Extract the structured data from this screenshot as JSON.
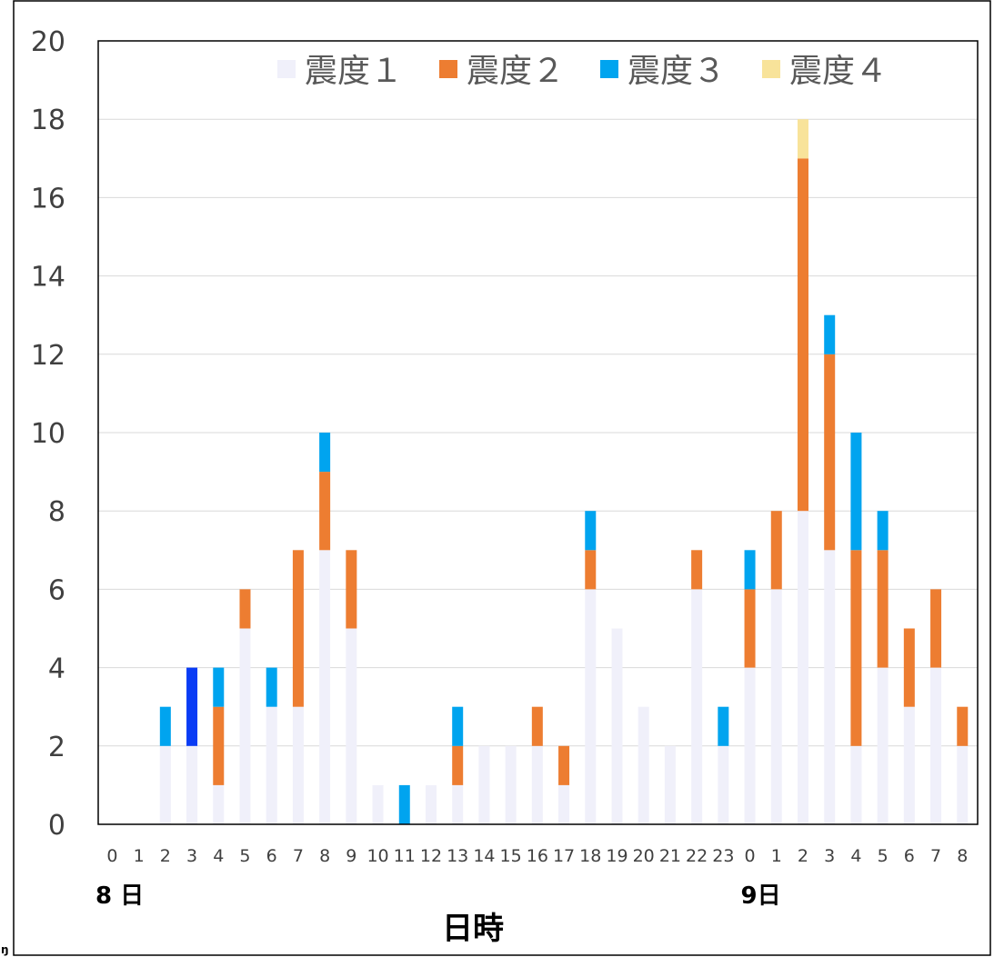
{
  "chart_data": {
    "type": "bar",
    "stacked": true,
    "categories": [
      "0",
      "1",
      "2",
      "3",
      "4",
      "5",
      "6",
      "7",
      "8",
      "9",
      "10",
      "11",
      "12",
      "13",
      "14",
      "15",
      "16",
      "17",
      "18",
      "19",
      "20",
      "21",
      "22",
      "23",
      "0",
      "1",
      "2",
      "3",
      "4",
      "5",
      "6",
      "7",
      "8"
    ],
    "series": [
      {
        "name": "震度１",
        "color": "#f0f0fa",
        "values": [
          0,
          0,
          2,
          2,
          1,
          5,
          3,
          3,
          7,
          5,
          1,
          0,
          1,
          1,
          2,
          2,
          2,
          1,
          6,
          5,
          3,
          2,
          6,
          2,
          4,
          6,
          8,
          7,
          2,
          4,
          3,
          4,
          2
        ]
      },
      {
        "name": "震度２",
        "color": "#ed7d31",
        "values": [
          0,
          0,
          0,
          0,
          2,
          1,
          0,
          4,
          2,
          2,
          0,
          0,
          0,
          1,
          0,
          0,
          1,
          1,
          1,
          0,
          0,
          0,
          1,
          0,
          2,
          2,
          9,
          5,
          5,
          3,
          2,
          2,
          1
        ]
      },
      {
        "name": "震度３",
        "color": "#00a4ef",
        "values": [
          0,
          0,
          1,
          2,
          1,
          0,
          1,
          0,
          1,
          0,
          0,
          1,
          0,
          1,
          0,
          0,
          0,
          0,
          1,
          0,
          0,
          0,
          0,
          1,
          1,
          0,
          0,
          1,
          3,
          1,
          0,
          0,
          0
        ]
      },
      {
        "name": "震度４",
        "color": "#f8e39a",
        "values": [
          0,
          0,
          0,
          0,
          0,
          0,
          0,
          0,
          0,
          0,
          0,
          0,
          0,
          0,
          0,
          0,
          0,
          0,
          0,
          0,
          0,
          0,
          0,
          0,
          0,
          0,
          1,
          0,
          0,
          0,
          0,
          0,
          0
        ]
      }
    ],
    "highlight": {
      "category_index": 3,
      "series_index": 2,
      "color": "#0a3cf5"
    },
    "ylim": [
      0,
      20
    ],
    "yticks": [
      "0",
      "2",
      "4",
      "6",
      "8",
      "10",
      "12",
      "14",
      "16",
      "18",
      "20"
    ],
    "grid": true,
    "legend_position": "top",
    "day_labels": [
      {
        "text": "8 日",
        "at_index": 0
      },
      {
        "text": "9日",
        "at_index": 24
      }
    ],
    "xlabel": "日時",
    "ylabel": "",
    "title": ""
  },
  "corner_glyph": "ŋ"
}
